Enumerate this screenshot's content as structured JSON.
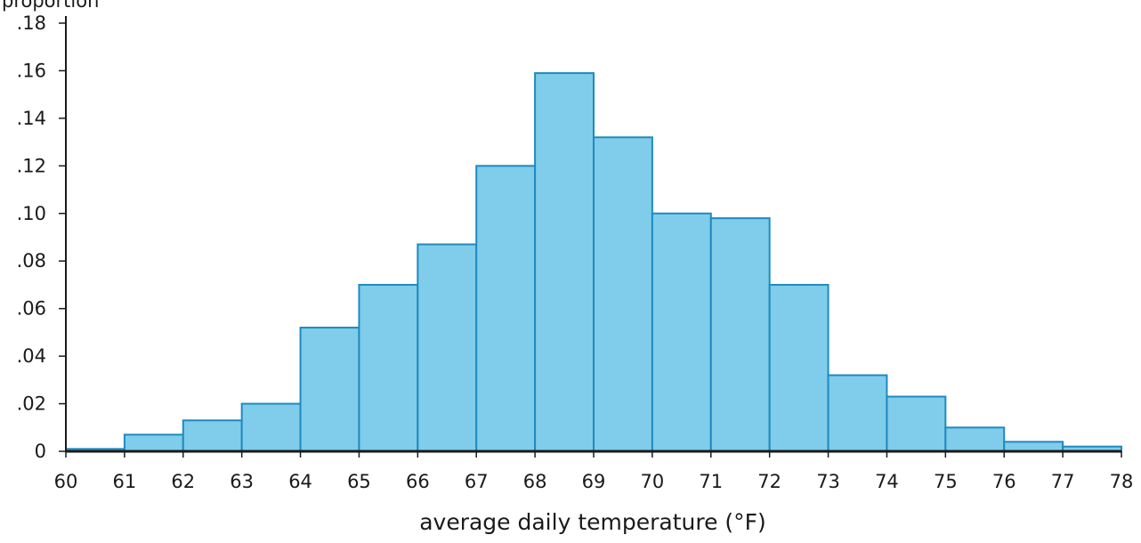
{
  "chart_data": {
    "type": "bar",
    "title": "",
    "xlabel": "average daily temperature (°F)",
    "ylabel": "proportion",
    "bin_edges": [
      60,
      61,
      62,
      63,
      64,
      65,
      66,
      67,
      68,
      69,
      70,
      71,
      72,
      73,
      74,
      75,
      76,
      77,
      78
    ],
    "values": [
      0.001,
      0.007,
      0.013,
      0.02,
      0.052,
      0.07,
      0.087,
      0.12,
      0.159,
      0.132,
      0.1,
      0.098,
      0.07,
      0.032,
      0.023,
      0.01,
      0.004,
      0.002
    ],
    "xlim": [
      60,
      78
    ],
    "ylim": [
      0,
      0.18
    ],
    "x_ticks": [
      "60",
      "61",
      "62",
      "63",
      "64",
      "65",
      "66",
      "67",
      "68",
      "69",
      "70",
      "71",
      "72",
      "73",
      "74",
      "75",
      "76",
      "77",
      "78"
    ],
    "y_ticks": [
      {
        "value": 0,
        "label": "0"
      },
      {
        "value": 0.02,
        "label": ".02"
      },
      {
        "value": 0.04,
        "label": ".04"
      },
      {
        "value": 0.06,
        "label": ".06"
      },
      {
        "value": 0.08,
        "label": ".08"
      },
      {
        "value": 0.1,
        "label": ".10"
      },
      {
        "value": 0.12,
        "label": ".12"
      },
      {
        "value": 0.14,
        "label": ".14"
      },
      {
        "value": 0.16,
        "label": ".16"
      },
      {
        "value": 0.18,
        "label": ".18"
      }
    ],
    "grid": false,
    "bar_fill": "#7fcdea",
    "bar_stroke": "#1f8ac0",
    "axis_color": "#1a1a1a"
  }
}
